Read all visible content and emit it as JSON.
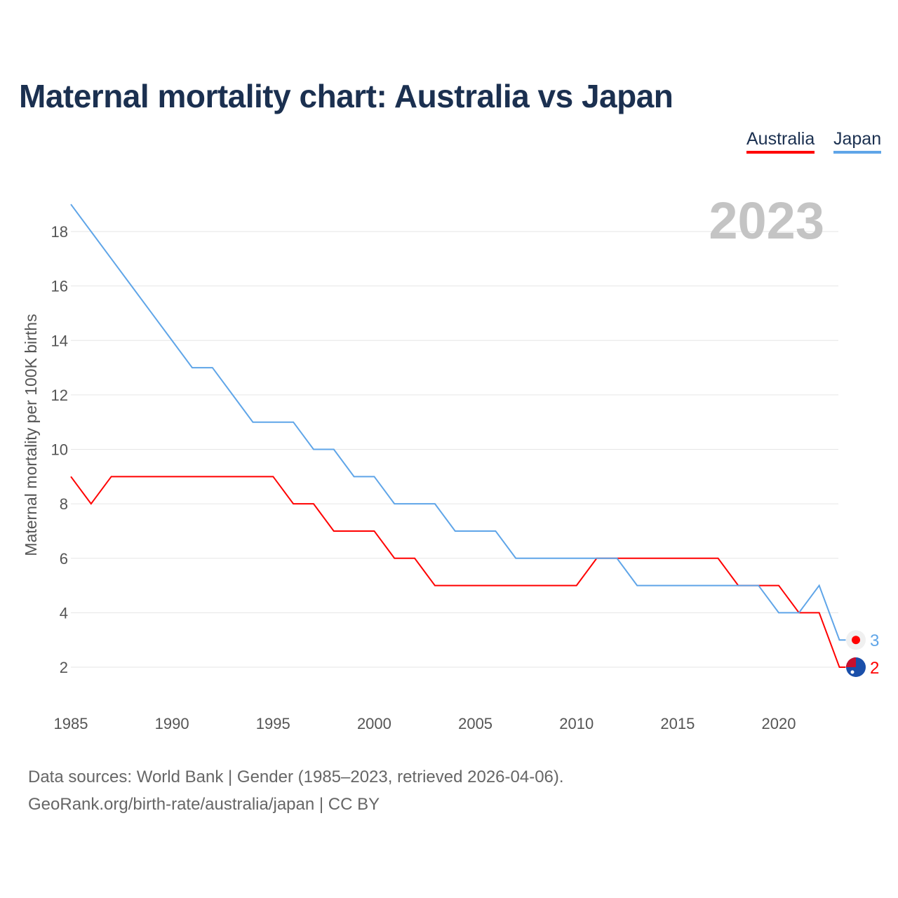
{
  "chart_data": {
    "type": "line",
    "title": "Maternal mortality chart: Australia vs Japan",
    "xlabel": "",
    "ylabel": "Maternal mortality per 100K births",
    "xlim": [
      1985,
      2023
    ],
    "ylim": [
      1,
      19
    ],
    "x_ticks": [
      1985,
      1990,
      1995,
      2000,
      2005,
      2010,
      2015,
      2020
    ],
    "y_ticks": [
      2,
      4,
      6,
      8,
      10,
      12,
      14,
      16,
      18
    ],
    "grid": true,
    "legend_placement": "top-right",
    "year_label": "2023",
    "x": [
      1985,
      1986,
      1987,
      1988,
      1989,
      1990,
      1991,
      1992,
      1993,
      1994,
      1995,
      1996,
      1997,
      1998,
      1999,
      2000,
      2001,
      2002,
      2003,
      2004,
      2005,
      2006,
      2007,
      2008,
      2009,
      2010,
      2011,
      2012,
      2013,
      2014,
      2015,
      2016,
      2017,
      2018,
      2019,
      2020,
      2021,
      2022,
      2023
    ],
    "series": [
      {
        "name": "Australia",
        "color": "#ff0000",
        "end_label": "2",
        "values": [
          9,
          8,
          9,
          9,
          9,
          9,
          9,
          9,
          9,
          9,
          9,
          8,
          8,
          7,
          7,
          7,
          6,
          6,
          5,
          5,
          5,
          5,
          5,
          5,
          5,
          5,
          6,
          6,
          6,
          6,
          6,
          6,
          6,
          5,
          5,
          5,
          4,
          4,
          2
        ]
      },
      {
        "name": "Japan",
        "color": "#5fa5e8",
        "end_label": "3",
        "values": [
          19,
          18,
          17,
          16,
          15,
          14,
          13,
          13,
          12,
          11,
          11,
          11,
          10,
          10,
          9,
          9,
          8,
          8,
          8,
          7,
          7,
          7,
          6,
          6,
          6,
          6,
          6,
          6,
          5,
          5,
          5,
          5,
          5,
          5,
          5,
          4,
          4,
          5,
          3
        ]
      }
    ]
  },
  "footer": {
    "line1": "Data sources: World Bank | Gender (1985–2023, retrieved 2026-04-06).",
    "line2": "GeoRank.org/birth-rate/australia/japan | CC BY"
  }
}
